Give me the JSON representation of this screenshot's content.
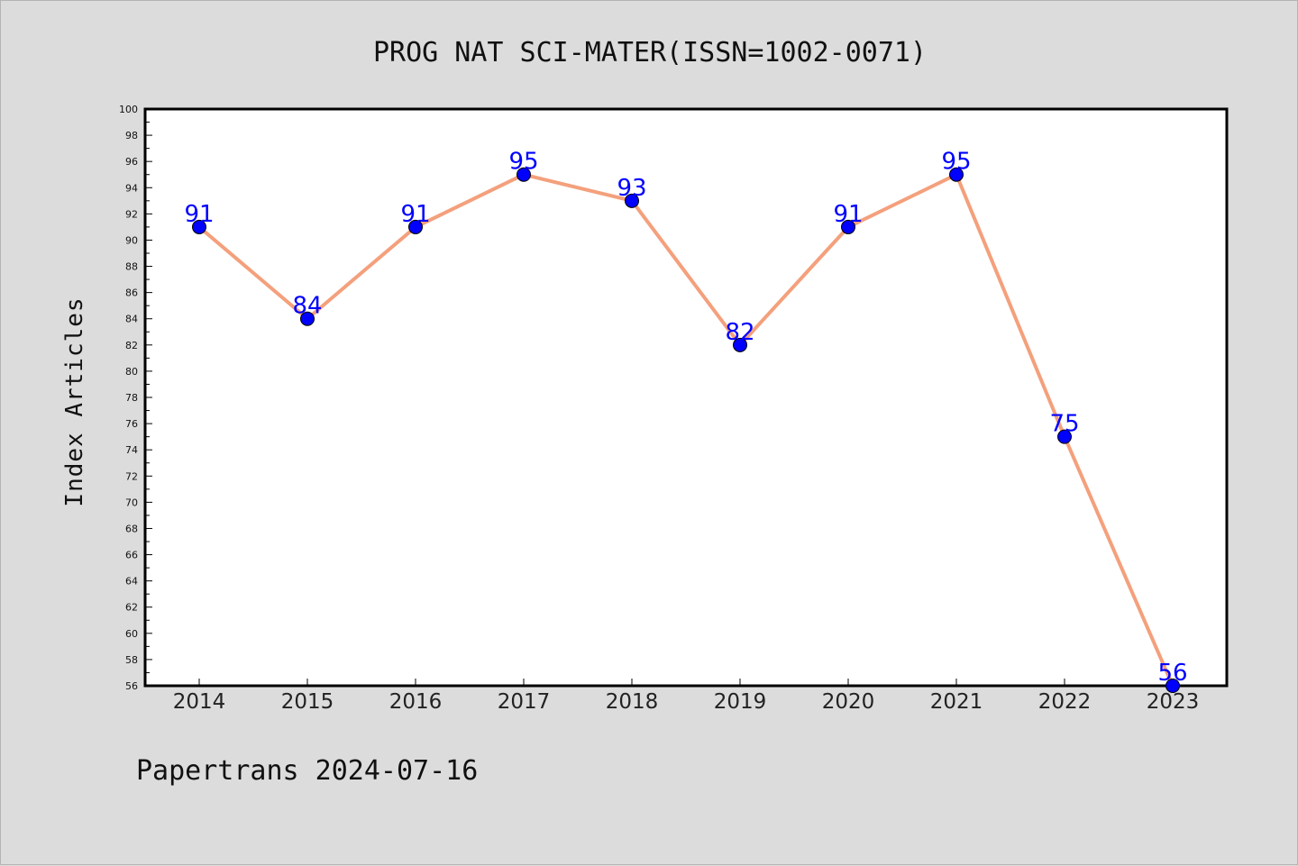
{
  "chart_data": {
    "type": "line",
    "title": "PROG NAT SCI-MATER(ISSN=1002-0071)",
    "xlabel": "",
    "ylabel": "Index Articles",
    "categories": [
      "2014",
      "2015",
      "2016",
      "2017",
      "2018",
      "2019",
      "2020",
      "2021",
      "2022",
      "2023"
    ],
    "series": [
      {
        "values": [
          91,
          84,
          91,
          95,
          93,
          82,
          91,
          95,
          75,
          56
        ]
      }
    ],
    "ylim": [
      56,
      100
    ],
    "ytick_step": 2,
    "grid": false,
    "data_labels": true,
    "colors": {
      "line": "#f4a07c",
      "marker": "#0000ff",
      "label": "#0000ff",
      "frame": "#000000"
    }
  },
  "footer": {
    "text": "Papertrans 2024-07-16"
  }
}
